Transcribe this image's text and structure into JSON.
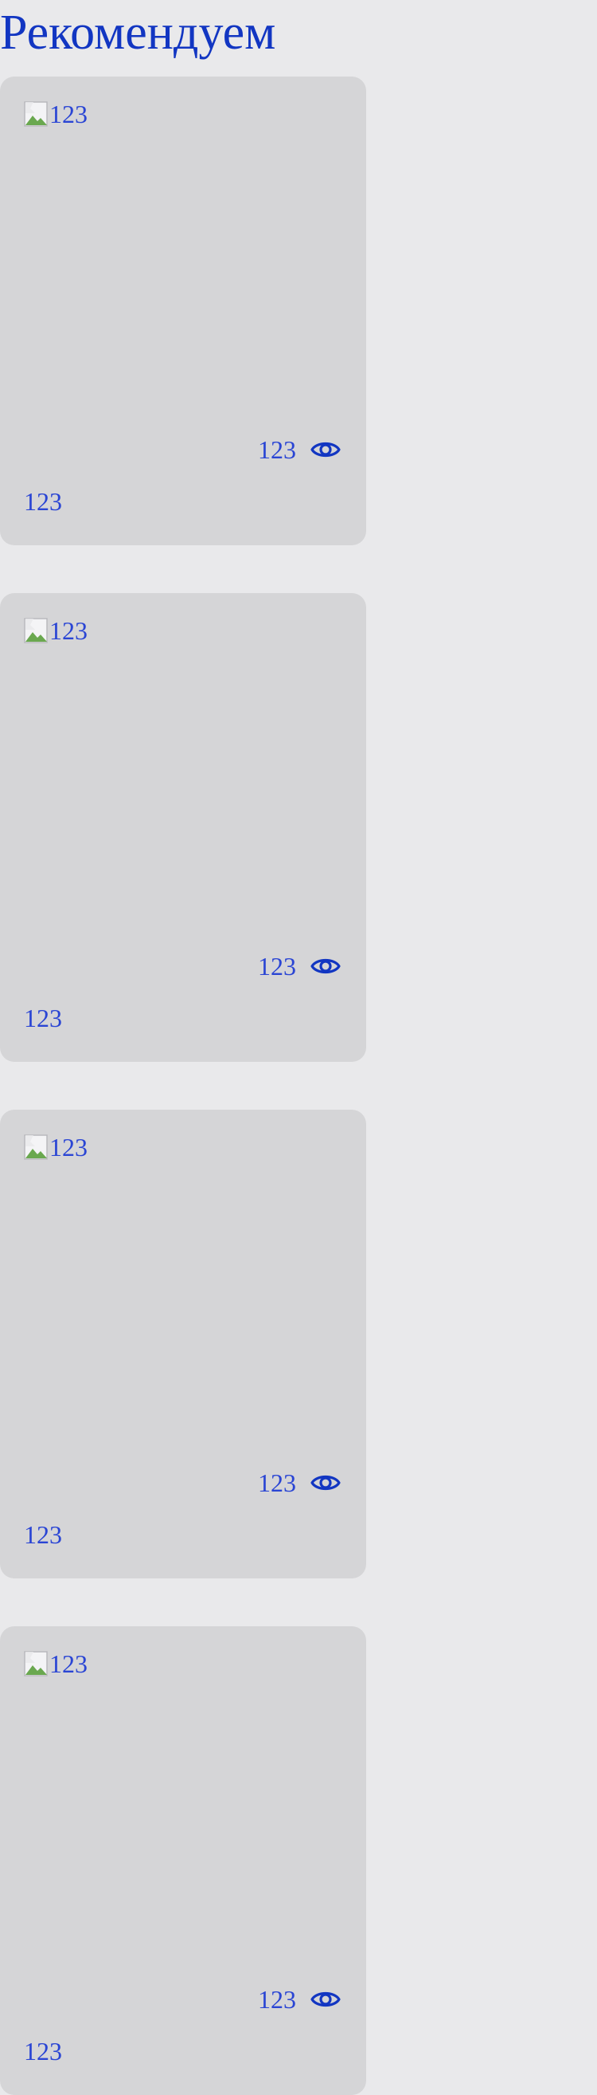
{
  "section": {
    "title": "Рекомендуем"
  },
  "cards": [
    {
      "image_alt": "123",
      "views": "123",
      "title": "123"
    },
    {
      "image_alt": "123",
      "views": "123",
      "title": "123"
    },
    {
      "image_alt": "123",
      "views": "123",
      "title": "123"
    },
    {
      "image_alt": "123",
      "views": "123",
      "title": "123"
    }
  ],
  "icons": {
    "views": "eye-icon",
    "image_placeholder": "broken-image-icon"
  },
  "colors": {
    "background": "#e9e9eb",
    "card_background": "#d5d5d7",
    "heading": "#1236c2",
    "text": "#2a45d4"
  }
}
